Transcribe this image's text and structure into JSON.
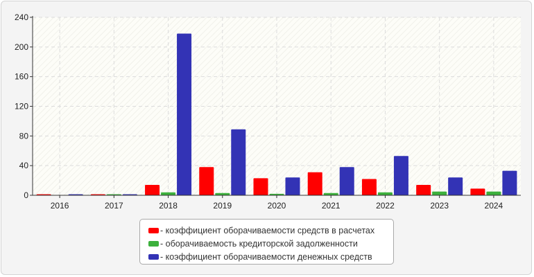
{
  "chart_data": {
    "type": "bar",
    "categories": [
      "2016",
      "2017",
      "2018",
      "2019",
      "2020",
      "2021",
      "2022",
      "2023",
      "2024"
    ],
    "series": [
      {
        "name": "- коэффициент оборачиваемости средств в расчетах",
        "color": "#ff0000",
        "values": [
          1,
          1,
          14,
          38,
          23,
          31,
          22,
          14,
          9
        ]
      },
      {
        "name": "- оборачиваемость кредиторской задолженности",
        "color": "#3cb03c",
        "values": [
          0,
          1,
          4,
          3,
          2,
          3,
          4,
          5,
          5
        ]
      },
      {
        "name": "- коэффициент оборачиваемости денежных средств",
        "color": "#3333b5",
        "values": [
          1,
          1,
          218,
          89,
          24,
          38,
          53,
          24,
          33
        ]
      }
    ],
    "ylim": [
      0,
      240
    ],
    "yticks": [
      0,
      40,
      80,
      120,
      160,
      200,
      240
    ],
    "grid": true,
    "legend_position": "bottom"
  }
}
